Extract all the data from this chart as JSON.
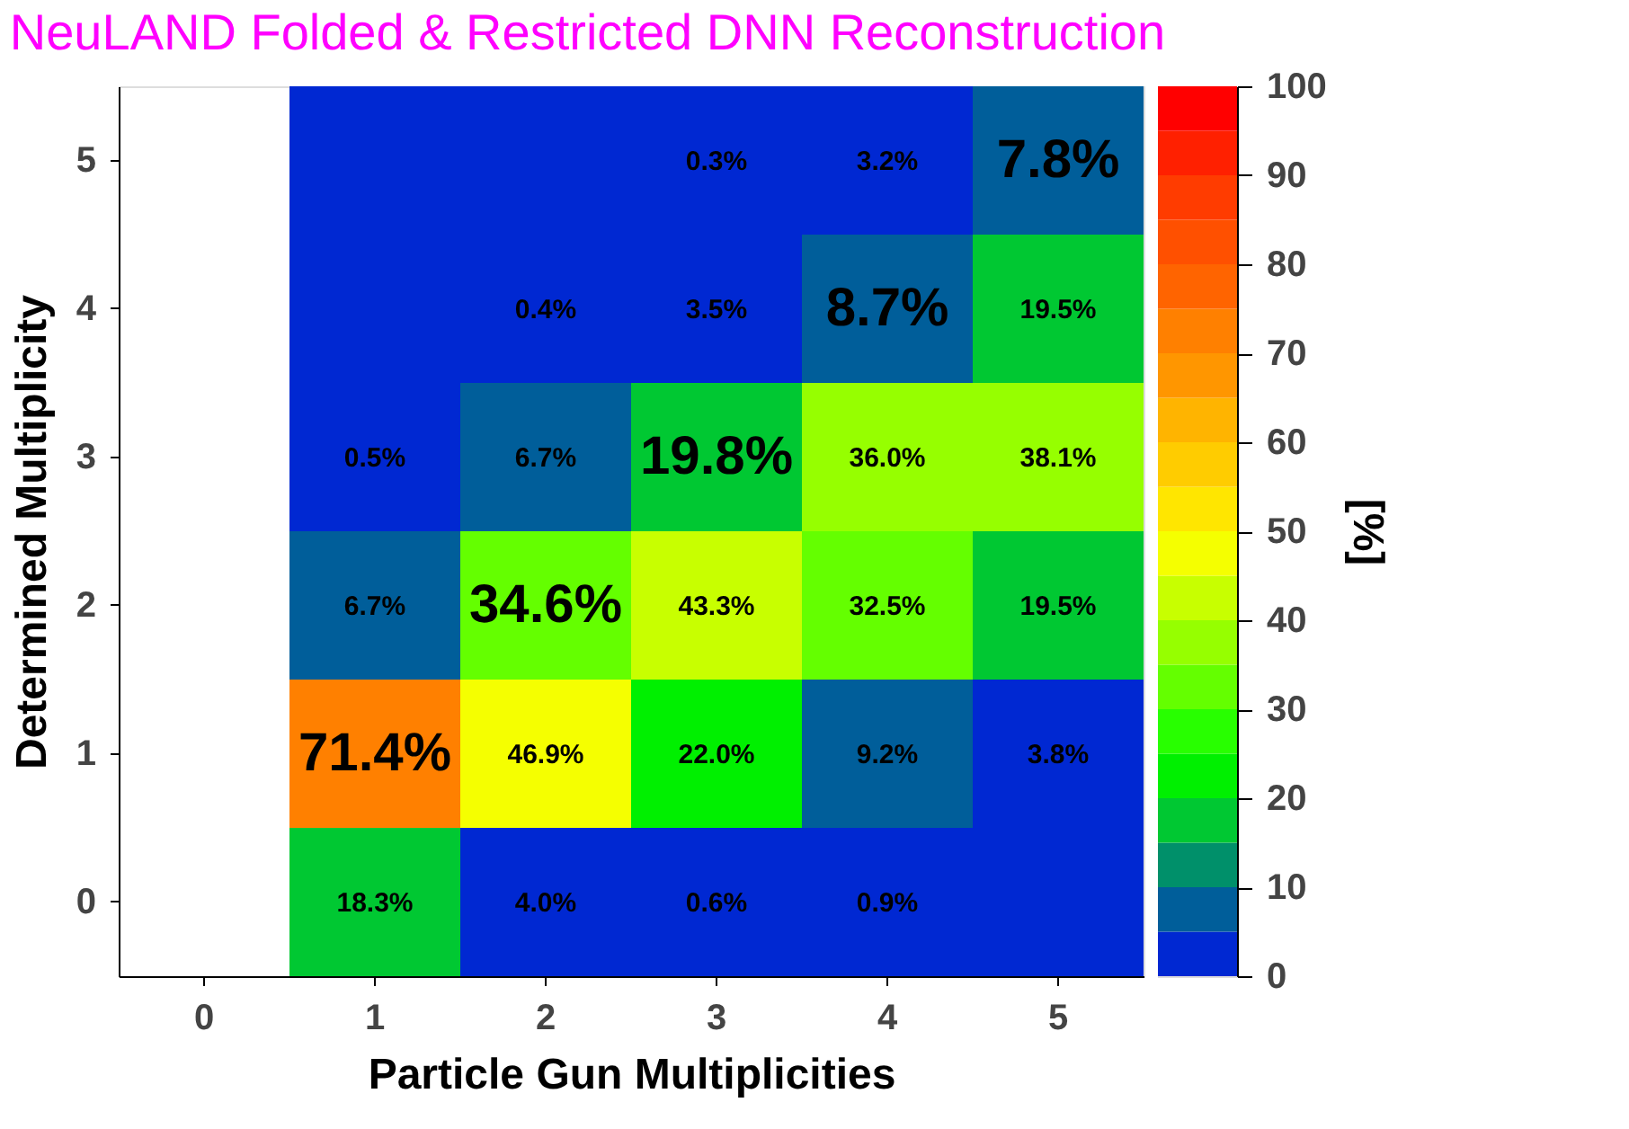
{
  "chart_data": {
    "type": "heatmap",
    "title": "NeuLAND Folded & Restricted DNN Reconstruction",
    "xlabel": "Particle Gun Multiplicities",
    "ylabel": "Determined Multiplicity",
    "clabel": "[%]",
    "categories": [
      "0",
      "1",
      "2",
      "3",
      "4",
      "5"
    ],
    "y_categories": [
      "5",
      "4",
      "3",
      "2",
      "1",
      "0"
    ],
    "cells": [
      [
        null,
        0,
        0,
        0.3,
        3.2,
        7.8
      ],
      [
        null,
        0,
        0.4,
        3.5,
        8.7,
        19.5
      ],
      [
        null,
        0.5,
        6.7,
        19.8,
        36.0,
        38.1
      ],
      [
        null,
        6.7,
        34.6,
        43.3,
        32.5,
        19.5
      ],
      [
        null,
        71.4,
        46.9,
        22.0,
        9.2,
        3.8
      ],
      [
        null,
        18.3,
        4.0,
        0.6,
        0.9,
        0
      ]
    ],
    "cell_labels": [
      [
        null,
        null,
        null,
        "0.3%",
        "3.2%",
        "7.8%"
      ],
      [
        null,
        null,
        "0.4%",
        "3.5%",
        "8.7%",
        "19.5%"
      ],
      [
        null,
        "0.5%",
        "6.7%",
        "19.8%",
        "36.0%",
        "38.1%"
      ],
      [
        null,
        "6.7%",
        "34.6%",
        "43.3%",
        "32.5%",
        "19.5%"
      ],
      [
        null,
        "71.4%",
        "46.9%",
        "22.0%",
        "9.2%",
        "3.8%"
      ],
      [
        null,
        "18.3%",
        "4.0%",
        "0.6%",
        "0.9%",
        null
      ]
    ],
    "clim": [
      0,
      100
    ],
    "cticks": [
      0,
      10,
      20,
      30,
      40,
      50,
      60,
      70,
      80,
      90,
      100
    ],
    "colors": [
      "#0028d2",
      "#005e9a",
      "#00906a",
      "#00c832",
      "#00f000",
      "#28ff00",
      "#64ff00",
      "#96ff00",
      "#c8ff00",
      "#f5ff00",
      "#ffe600",
      "#ffcc00",
      "#ffb400",
      "#ff9600",
      "#ff8000",
      "#ff6400",
      "#ff5000",
      "#ff3c00",
      "#ff2000",
      "#ff0000"
    ]
  }
}
